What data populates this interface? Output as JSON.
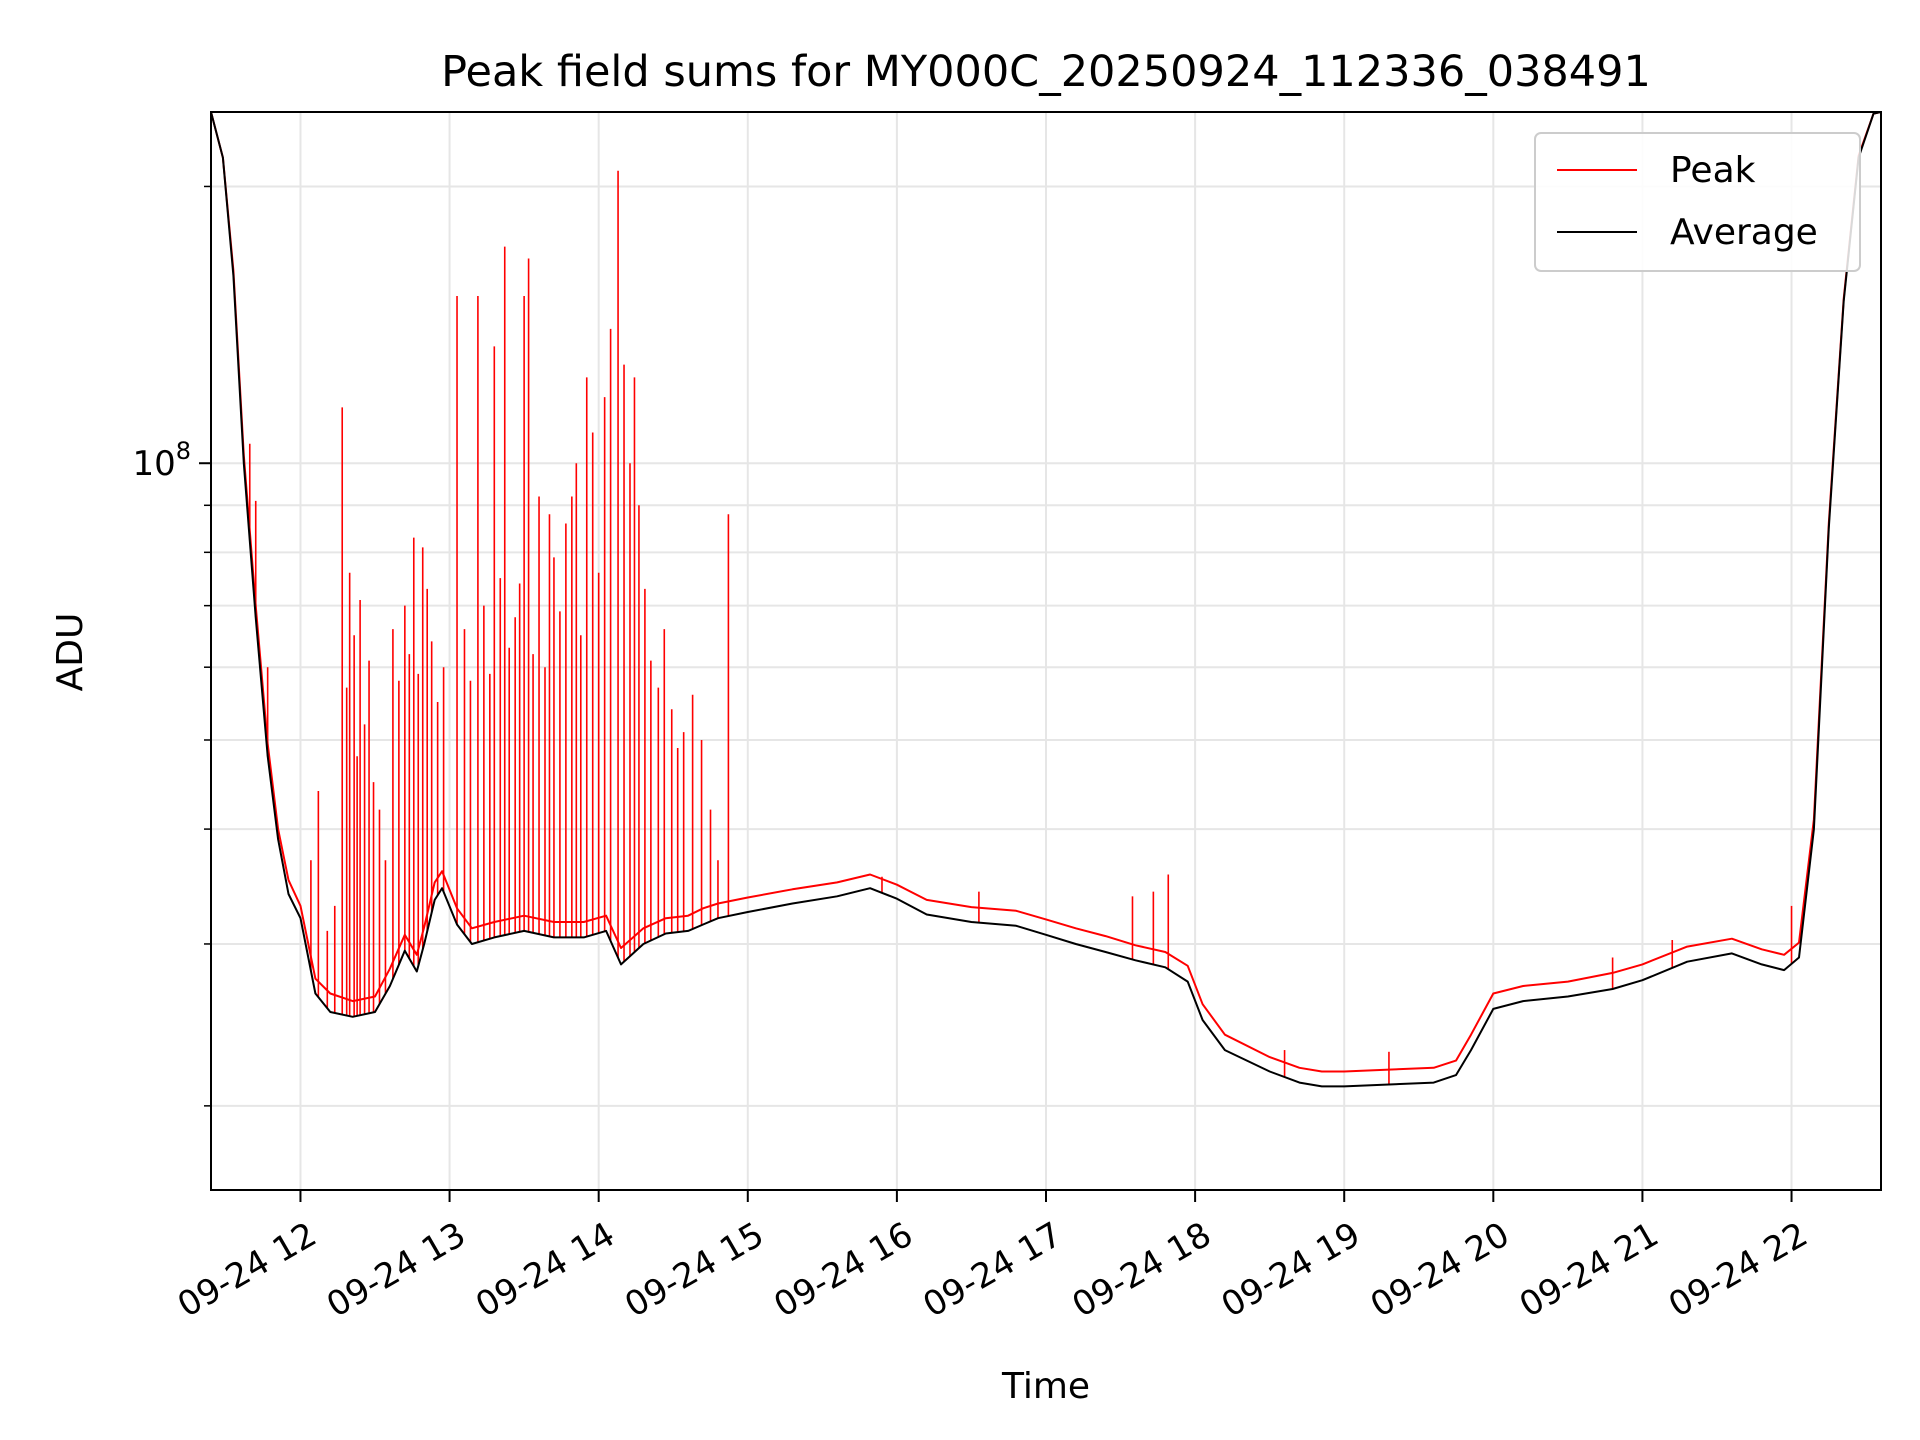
{
  "chart_data": {
    "type": "line",
    "title": "Peak field sums for MY000C_20250924_112336_038491",
    "xlabel": "Time",
    "ylabel": "ADU",
    "yscale": "log",
    "xlim": [
      11.4,
      22.6
    ],
    "ylim": [
      16200000,
      241000000
    ],
    "grid": true,
    "legend": {
      "placement": "top-right",
      "entries": [
        "Peak",
        "Average"
      ]
    },
    "x_ticks": [
      {
        "value": 12,
        "label": "09-24 12"
      },
      {
        "value": 13,
        "label": "09-24 13"
      },
      {
        "value": 14,
        "label": "09-24 14"
      },
      {
        "value": 15,
        "label": "09-24 15"
      },
      {
        "value": 16,
        "label": "09-24 16"
      },
      {
        "value": 17,
        "label": "09-24 17"
      },
      {
        "value": 18,
        "label": "09-24 18"
      },
      {
        "value": 19,
        "label": "09-24 19"
      },
      {
        "value": 20,
        "label": "09-24 20"
      },
      {
        "value": 21,
        "label": "09-24 21"
      },
      {
        "value": 22,
        "label": "09-24 22"
      }
    ],
    "y_ticks": [
      {
        "value": 100000000,
        "label_base": "10",
        "label_exp": "8"
      }
    ],
    "y_minor_ticks": [
      20000000,
      30000000,
      40000000,
      50000000,
      60000000,
      70000000,
      80000000,
      90000000,
      200000000
    ],
    "series": [
      {
        "name": "Average",
        "color": "#000000",
        "x": [
          11.4,
          11.48,
          11.55,
          11.62,
          11.7,
          11.78,
          11.85,
          11.92,
          12.0,
          12.1,
          12.2,
          12.35,
          12.5,
          12.6,
          12.7,
          12.78,
          12.83,
          12.9,
          12.95,
          13.05,
          13.15,
          13.3,
          13.5,
          13.7,
          13.9,
          14.05,
          14.15,
          14.3,
          14.45,
          14.6,
          14.7,
          14.8,
          15.0,
          15.3,
          15.6,
          15.82,
          16.0,
          16.2,
          16.5,
          16.8,
          17.0,
          17.2,
          17.4,
          17.6,
          17.8,
          17.95,
          18.05,
          18.2,
          18.5,
          18.7,
          18.85,
          19.0,
          19.3,
          19.6,
          19.75,
          19.85,
          20.0,
          20.2,
          20.5,
          20.8,
          21.0,
          21.3,
          21.6,
          21.8,
          21.95,
          22.05,
          22.15,
          22.25,
          22.35,
          22.45,
          22.55,
          22.6
        ],
        "y": [
          241000000,
          215000000,
          160000000,
          100000000,
          68000000,
          48000000,
          39000000,
          34000000,
          32000000,
          26500000,
          25300000,
          25000000,
          25300000,
          27000000,
          29500000,
          28000000,
          30000000,
          33500000,
          34500000,
          31500000,
          30000000,
          30500000,
          31000000,
          30500000,
          30500000,
          31000000,
          28500000,
          30000000,
          30800000,
          31000000,
          31500000,
          32000000,
          32500000,
          33200000,
          33800000,
          34500000,
          33600000,
          32300000,
          31700000,
          31400000,
          30700000,
          30000000,
          29400000,
          28800000,
          28300000,
          27300000,
          24800000,
          23000000,
          21800000,
          21200000,
          21000000,
          21000000,
          21100000,
          21200000,
          21600000,
          23000000,
          25500000,
          26000000,
          26300000,
          26800000,
          27400000,
          28700000,
          29300000,
          28500000,
          28100000,
          29000000,
          40000000,
          85000000,
          150000000,
          215000000,
          240000000,
          241000000
        ]
      },
      {
        "name": "Peak",
        "color": "#ff0000",
        "x": [
          11.4,
          11.48,
          11.55,
          11.62,
          11.7,
          11.78,
          11.85,
          11.92,
          12.0,
          12.1,
          12.2,
          12.35,
          12.5,
          12.6,
          12.7,
          12.78,
          12.83,
          12.9,
          12.95,
          13.05,
          13.15,
          13.3,
          13.5,
          13.7,
          13.9,
          14.05,
          14.15,
          14.3,
          14.45,
          14.6,
          14.7,
          14.8,
          15.0,
          15.3,
          15.6,
          15.82,
          16.0,
          16.2,
          16.5,
          16.8,
          17.0,
          17.2,
          17.4,
          17.6,
          17.8,
          17.95,
          18.05,
          18.2,
          18.5,
          18.7,
          18.85,
          19.0,
          19.3,
          19.6,
          19.75,
          19.85,
          20.0,
          20.2,
          20.5,
          20.8,
          21.0,
          21.3,
          21.6,
          21.8,
          21.95,
          22.05,
          22.15,
          22.25,
          22.35,
          22.45,
          22.55,
          22.6
        ],
        "y": [
          241000000,
          215000000,
          162000000,
          102000000,
          70000000,
          49500000,
          40000000,
          35200000,
          33000000,
          27500000,
          26500000,
          26000000,
          26300000,
          28200000,
          30700000,
          29200000,
          31300000,
          35000000,
          36000000,
          32800000,
          31200000,
          31700000,
          32200000,
          31700000,
          31700000,
          32200000,
          29700000,
          31200000,
          32000000,
          32200000,
          32800000,
          33200000,
          33700000,
          34400000,
          35000000,
          35700000,
          34800000,
          33500000,
          32900000,
          32600000,
          31900000,
          31200000,
          30600000,
          29900000,
          29400000,
          28400000,
          25800000,
          23900000,
          22600000,
          22000000,
          21800000,
          21800000,
          21900000,
          22000000,
          22400000,
          23900000,
          26500000,
          27000000,
          27300000,
          27900000,
          28500000,
          29800000,
          30400000,
          29600000,
          29200000,
          30100000,
          41000000,
          86000000,
          151000000,
          216000000,
          240000000,
          241000000
        ]
      }
    ],
    "peak_spikes": [
      {
        "x": 11.66,
        "y": 105000000
      },
      {
        "x": 11.7,
        "y": 91000000
      },
      {
        "x": 11.78,
        "y": 60000000
      },
      {
        "x": 11.85,
        "y": 40000000
      },
      {
        "x": 12.07,
        "y": 37000000
      },
      {
        "x": 12.12,
        "y": 44000000
      },
      {
        "x": 12.18,
        "y": 31000000
      },
      {
        "x": 12.23,
        "y": 33000000
      },
      {
        "x": 12.28,
        "y": 115000000
      },
      {
        "x": 12.31,
        "y": 57000000
      },
      {
        "x": 12.33,
        "y": 76000000
      },
      {
        "x": 12.36,
        "y": 65000000
      },
      {
        "x": 12.38,
        "y": 48000000
      },
      {
        "x": 12.4,
        "y": 71000000
      },
      {
        "x": 12.43,
        "y": 52000000
      },
      {
        "x": 12.46,
        "y": 61000000
      },
      {
        "x": 12.49,
        "y": 45000000
      },
      {
        "x": 12.53,
        "y": 42000000
      },
      {
        "x": 12.57,
        "y": 37000000
      },
      {
        "x": 12.62,
        "y": 66000000
      },
      {
        "x": 12.66,
        "y": 58000000
      },
      {
        "x": 12.7,
        "y": 70000000
      },
      {
        "x": 12.73,
        "y": 62000000
      },
      {
        "x": 12.76,
        "y": 83000000
      },
      {
        "x": 12.79,
        "y": 59000000
      },
      {
        "x": 12.82,
        "y": 81000000
      },
      {
        "x": 12.85,
        "y": 73000000
      },
      {
        "x": 12.88,
        "y": 64000000
      },
      {
        "x": 12.92,
        "y": 55000000
      },
      {
        "x": 12.96,
        "y": 60000000
      },
      {
        "x": 13.05,
        "y": 152000000
      },
      {
        "x": 13.1,
        "y": 66000000
      },
      {
        "x": 13.14,
        "y": 58000000
      },
      {
        "x": 13.19,
        "y": 152000000
      },
      {
        "x": 13.23,
        "y": 70000000
      },
      {
        "x": 13.27,
        "y": 59000000
      },
      {
        "x": 13.3,
        "y": 134000000
      },
      {
        "x": 13.34,
        "y": 75000000
      },
      {
        "x": 13.37,
        "y": 172000000
      },
      {
        "x": 13.4,
        "y": 63000000
      },
      {
        "x": 13.44,
        "y": 68000000
      },
      {
        "x": 13.47,
        "y": 74000000
      },
      {
        "x": 13.5,
        "y": 152000000
      },
      {
        "x": 13.53,
        "y": 167000000
      },
      {
        "x": 13.56,
        "y": 62000000
      },
      {
        "x": 13.6,
        "y": 92000000
      },
      {
        "x": 13.64,
        "y": 60000000
      },
      {
        "x": 13.67,
        "y": 88000000
      },
      {
        "x": 13.7,
        "y": 79000000
      },
      {
        "x": 13.74,
        "y": 69000000
      },
      {
        "x": 13.78,
        "y": 86000000
      },
      {
        "x": 13.82,
        "y": 92000000
      },
      {
        "x": 13.85,
        "y": 100000000
      },
      {
        "x": 13.88,
        "y": 65000000
      },
      {
        "x": 13.92,
        "y": 124000000
      },
      {
        "x": 13.96,
        "y": 108000000
      },
      {
        "x": 14.0,
        "y": 76000000
      },
      {
        "x": 14.04,
        "y": 118000000
      },
      {
        "x": 14.08,
        "y": 140000000
      },
      {
        "x": 14.13,
        "y": 208000000
      },
      {
        "x": 14.17,
        "y": 128000000
      },
      {
        "x": 14.21,
        "y": 100000000
      },
      {
        "x": 14.24,
        "y": 124000000
      },
      {
        "x": 14.27,
        "y": 90000000
      },
      {
        "x": 14.31,
        "y": 73000000
      },
      {
        "x": 14.35,
        "y": 61000000
      },
      {
        "x": 14.4,
        "y": 57000000
      },
      {
        "x": 14.44,
        "y": 66000000
      },
      {
        "x": 14.49,
        "y": 54000000
      },
      {
        "x": 14.53,
        "y": 49000000
      },
      {
        "x": 14.57,
        "y": 51000000
      },
      {
        "x": 14.63,
        "y": 56000000
      },
      {
        "x": 14.69,
        "y": 50000000
      },
      {
        "x": 14.75,
        "y": 42000000
      },
      {
        "x": 14.8,
        "y": 37000000
      },
      {
        "x": 14.87,
        "y": 88000000
      },
      {
        "x": 15.9,
        "y": 35500000
      },
      {
        "x": 16.55,
        "y": 34200000
      },
      {
        "x": 17.58,
        "y": 33800000
      },
      {
        "x": 17.72,
        "y": 34200000
      },
      {
        "x": 17.82,
        "y": 35700000
      },
      {
        "x": 18.6,
        "y": 23000000
      },
      {
        "x": 19.3,
        "y": 22900000
      },
      {
        "x": 20.8,
        "y": 29000000
      },
      {
        "x": 21.2,
        "y": 30300000
      },
      {
        "x": 22.0,
        "y": 33000000
      }
    ]
  }
}
